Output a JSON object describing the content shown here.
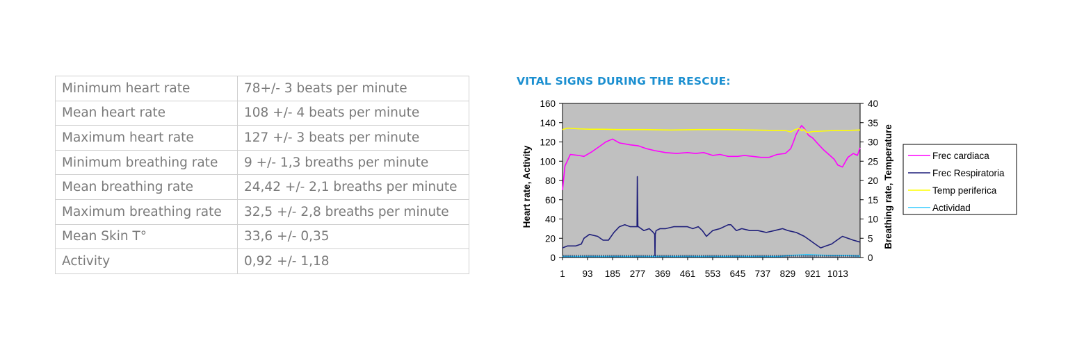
{
  "stats": [
    {
      "label": "Minimum heart rate",
      "value": "78+/- 3 beats per minute"
    },
    {
      "label": "Mean heart rate",
      "value": "108 +/- 4 beats per minute"
    },
    {
      "label": "Maximum heart rate",
      "value": "127 +/- 3 beats per minute"
    },
    {
      "label": "Minimum breathing rate",
      "value": "9 +/- 1,3 breaths per minute"
    },
    {
      "label": "Mean breathing rate",
      "value": "24,42 +/- 2,1 breaths per minute"
    },
    {
      "label": "Maximum breathing rate",
      "value": "32,5 +/- 2,8 breaths per minute"
    },
    {
      "label": "Mean Skin T°",
      "value": "33,6 +/- 0,35"
    },
    {
      "label": "Activity",
      "value": " 0,92 +/- 1,18"
    }
  ],
  "chart_data": {
    "type": "line",
    "title": "VITAL SIGNS DURING THE RESCUE:",
    "xlabel": "",
    "ylabel": "Heart rate, Activity",
    "y2label": "Breathing rate, Temperature",
    "x_ticks": [
      1,
      93,
      185,
      277,
      369,
      461,
      553,
      645,
      737,
      829,
      921,
      1013
    ],
    "xlim": [
      1,
      1095
    ],
    "ylim": [
      0,
      160
    ],
    "y_ticks": [
      0,
      20,
      40,
      60,
      80,
      100,
      120,
      140,
      160
    ],
    "y2lim": [
      0,
      40
    ],
    "y2_ticks": [
      0,
      5,
      10,
      15,
      20,
      25,
      30,
      35,
      40
    ],
    "plot_background": "#c0c0c0",
    "grid": false,
    "legend_position": "right",
    "series": [
      {
        "name": "Frec cardiaca",
        "color": "#ff00ff",
        "axis": "left",
        "x": [
          1,
          10,
          30,
          60,
          80,
          110,
          140,
          160,
          185,
          210,
          250,
          280,
          310,
          340,
          380,
          420,
          460,
          490,
          520,
          553,
          580,
          610,
          645,
          670,
          700,
          730,
          760,
          790,
          820,
          840,
          850,
          860,
          870,
          880,
          890,
          905,
          921,
          940,
          960,
          980,
          1000,
          1013,
          1030,
          1050,
          1070,
          1085,
          1095
        ],
        "y": [
          70,
          95,
          107,
          106,
          105,
          110,
          116,
          120,
          123,
          119,
          117,
          116,
          113,
          111,
          109,
          108,
          109,
          108,
          109,
          106,
          107,
          105,
          105,
          106,
          105,
          104,
          104,
          107,
          108,
          113,
          120,
          128,
          133,
          137,
          134,
          127,
          124,
          118,
          112,
          107,
          102,
          96,
          94,
          104,
          108,
          106,
          114
        ]
      },
      {
        "name": "Frec Respiratoria",
        "color": "#1f1f7a",
        "axis": "right",
        "x": [
          1,
          20,
          50,
          70,
          80,
          100,
          130,
          150,
          170,
          190,
          210,
          230,
          250,
          270,
          275,
          276,
          278,
          280,
          300,
          320,
          335,
          340,
          341,
          342,
          345,
          360,
          380,
          410,
          440,
          460,
          480,
          500,
          515,
          530,
          553,
          580,
          610,
          620,
          640,
          660,
          690,
          720,
          750,
          780,
          810,
          830,
          860,
          890,
          910,
          930,
          950,
          970,
          990,
          1010,
          1030,
          1050,
          1070,
          1095
        ],
        "y": [
          2.5,
          3,
          3,
          3.5,
          5,
          6,
          5.5,
          4.5,
          4.5,
          6.5,
          8,
          8.5,
          8,
          8,
          8,
          21,
          8,
          8,
          7,
          7.5,
          6.5,
          6,
          0,
          6,
          7,
          7.5,
          7.5,
          8,
          8,
          8,
          7.5,
          8,
          7,
          5.5,
          7,
          7.5,
          8.5,
          8.5,
          7,
          7.5,
          7,
          7,
          6.5,
          7,
          7.5,
          7,
          6.5,
          5.5,
          4.5,
          3.5,
          2.5,
          3,
          3.5,
          4.5,
          5.5,
          5,
          4.5,
          4
        ]
      },
      {
        "name": "Temp periferica",
        "color": "#ffff00",
        "axis": "right",
        "x": [
          1,
          20,
          60,
          100,
          150,
          200,
          300,
          400,
          500,
          600,
          700,
          780,
          820,
          840,
          850,
          860,
          870,
          880,
          890,
          900,
          921,
          950,
          1000,
          1050,
          1095
        ],
        "y": [
          33.2,
          33.6,
          33.4,
          33.3,
          33.3,
          33.2,
          33.2,
          33.1,
          33.2,
          33.2,
          33.1,
          33.0,
          33.0,
          32.6,
          33.0,
          33.3,
          33.5,
          32.9,
          33.2,
          32.4,
          32.7,
          32.8,
          33.0,
          33.0,
          33.1
        ]
      },
      {
        "name": "Actividad",
        "color": "#33ccff",
        "axis": "left",
        "x": [
          1,
          100,
          200,
          300,
          400,
          500,
          600,
          700,
          800,
          829,
          860,
          900,
          950,
          1000,
          1050,
          1095
        ],
        "y": [
          1,
          1,
          1,
          1,
          1,
          1,
          1,
          1,
          1,
          2,
          2.5,
          3,
          2.5,
          2,
          2,
          1.5
        ]
      }
    ]
  }
}
